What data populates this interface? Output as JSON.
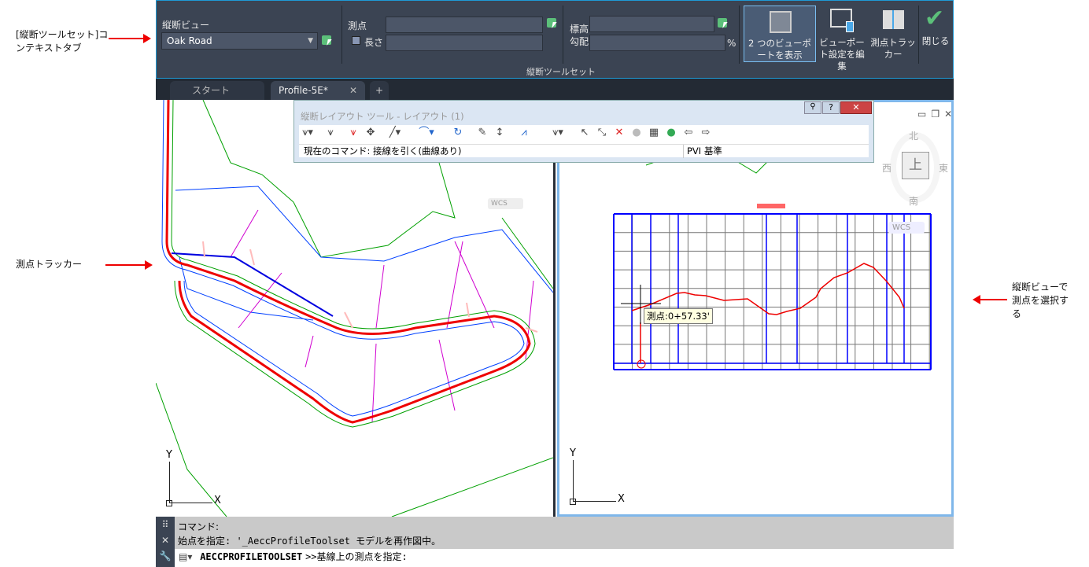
{
  "annotations": {
    "context_tab": "[縦断ツールセット]コンテキストタブ",
    "station_tracker": "測点トラッカー",
    "select_station": "縦断ビューで測点を選択する"
  },
  "ribbon": {
    "profile_view_label": "縦断ビュー",
    "profile_view_value": "Oak Road",
    "station_label": "測点",
    "station_value": "",
    "length_label": "長さ",
    "length_value": "",
    "elevation_label": "標高",
    "elevation_value": "",
    "grade_label": "勾配",
    "grade_value": "",
    "grade_unit": "%",
    "show_two_viewports": "2 つのビューポートを表示",
    "edit_viewport_settings": "ビューポート設定を編集",
    "station_tracker": "測点トラッカー",
    "close": "閉じる",
    "panel_title": "縦断ツールセット",
    "accent_color": "#1e9ad6"
  },
  "tabs": [
    {
      "label": "スタート"
    },
    {
      "label": "Profile-5E*"
    }
  ],
  "layout_tools": {
    "title": "縦断レイアウト ツール - レイアウト (1)",
    "current_command": "現在のコマンド: 接線を引く(曲線あり)",
    "pvi_basis": "PVI 基準"
  },
  "viewcube": {
    "north": "北",
    "south": "南",
    "east": "東",
    "west": "西",
    "top": "上",
    "wcs": "WCS"
  },
  "profile": {
    "tooltip": "測点:0+57.33'"
  },
  "axes": {
    "x": "X",
    "y": "Y"
  },
  "command": {
    "line1": "コマンド:",
    "line2": "始点を指定: '_AeccProfileToolset モデルを再作図中。",
    "prompt_cmd": "AECCPROFILETOOLSET",
    "prompt_text": ">>基線上の測点を指定:"
  }
}
